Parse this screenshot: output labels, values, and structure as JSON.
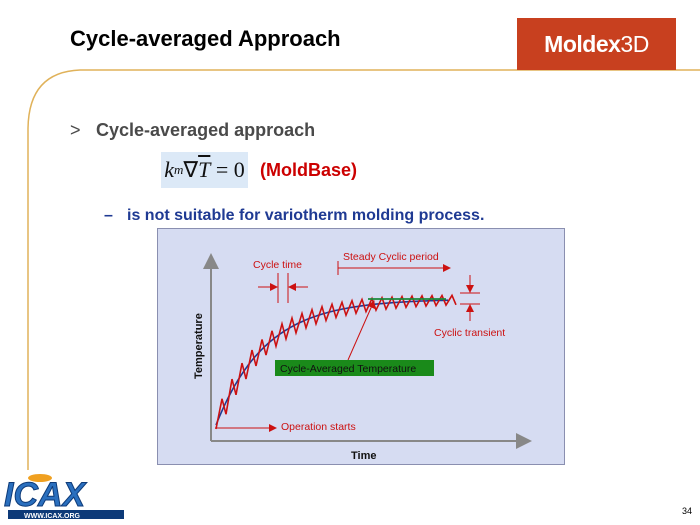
{
  "slide": {
    "title": "Cycle-averaged Approach",
    "logo": {
      "text_main": "Moldex",
      "text_suffix": "3D",
      "color": "#c8401f"
    },
    "bullet": {
      "marker": ">",
      "text": "Cycle-averaged approach"
    },
    "formula": {
      "k": "k",
      "subscript": "m",
      "nabla": "∇",
      "T": "T",
      "rhs": "= 0"
    },
    "formula_note": "(MoldBase)",
    "sub_bullet": {
      "marker": "–",
      "text": "is not suitable for variotherm molding process."
    },
    "footer": {
      "logo_text": "ICAX",
      "logo_url": "WWW.ICAX.ORG",
      "page_number": "34"
    }
  },
  "figure": {
    "x_axis_label": "Time",
    "y_axis_label": "Temperature",
    "cycle_time_label": "Cycle time",
    "steady_label": "Steady Cyclic period",
    "transient_label": "Cyclic transient",
    "averaged_label": "Cycle-Averaged Temperature",
    "operation_label": "Operation starts",
    "colors": {
      "cyclic_curve": "#cc1111",
      "average_curve": "#1f3a93",
      "steady_average": "#1a8a3a",
      "annotation": "#cc1111",
      "label_box": "#1a8a1a"
    }
  }
}
